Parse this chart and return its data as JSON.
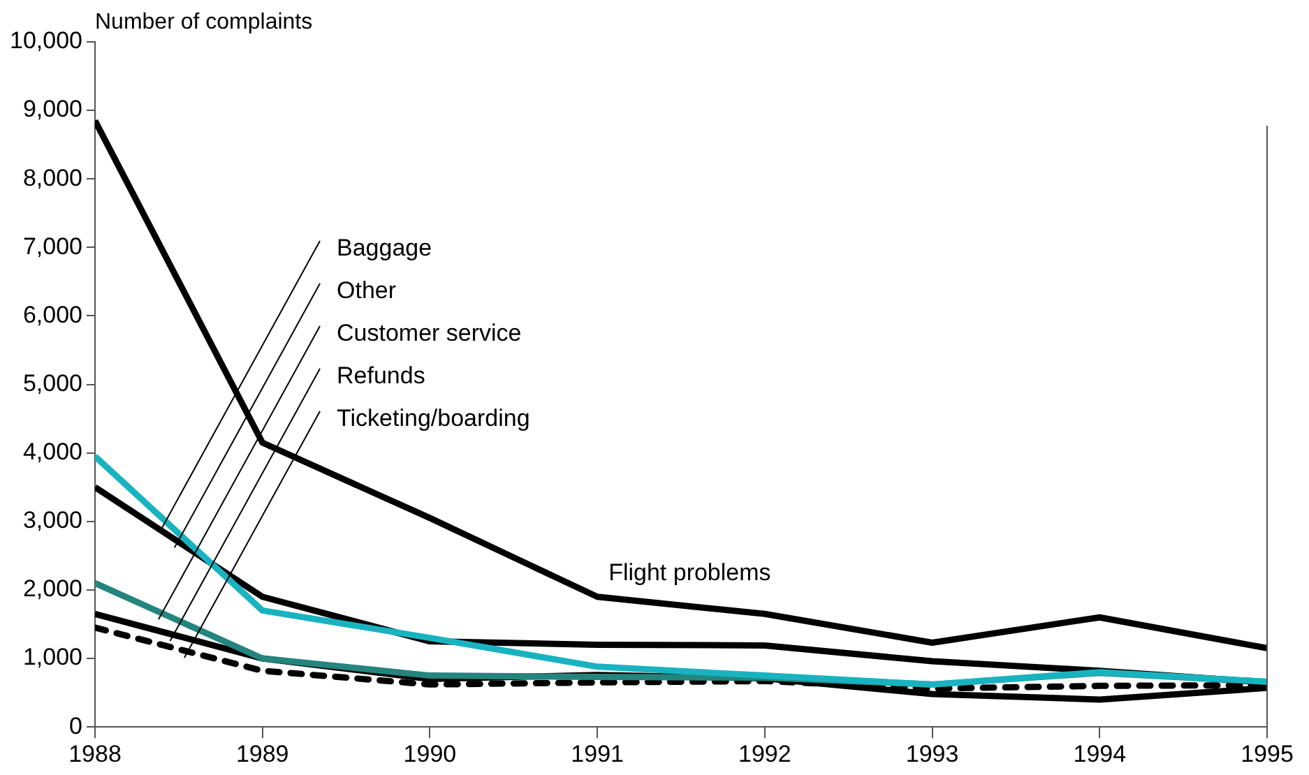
{
  "chart_data": {
    "type": "line",
    "ylabel": "Number of complaints",
    "x": [
      1988,
      1989,
      1990,
      1991,
      1992,
      1993,
      1994,
      1995
    ],
    "xlim": [
      1988,
      1995
    ],
    "xticks": [
      1988,
      1989,
      1990,
      1991,
      1992,
      1993,
      1994,
      1995
    ],
    "ylim": [
      0,
      10000
    ],
    "yticks": [
      0,
      {
        "value": 1000,
        "label": "1,000"
      },
      {
        "value": 2000,
        "label": "2,000"
      },
      {
        "value": 3000,
        "label": "3,000"
      },
      {
        "value": 4000,
        "label": "4,000"
      },
      {
        "value": 5000,
        "label": "5,000"
      },
      {
        "value": 6000,
        "label": "6,000"
      },
      {
        "value": 7000,
        "label": "7,000"
      },
      {
        "value": 8000,
        "label": "8,000"
      },
      {
        "value": 9000,
        "label": "9,000"
      },
      {
        "value": 10000,
        "label": "10,000"
      }
    ],
    "grid": false,
    "legend": false,
    "marker": "none",
    "line_style": "solid",
    "series": [
      {
        "name": "Flight problems",
        "color": "#000000",
        "values": [
          8850,
          4150,
          3050,
          1900,
          1650,
          1230,
          1600,
          1150
        ]
      },
      {
        "name": "Baggage",
        "color": "#19b3c0",
        "values": [
          3950,
          1700,
          1300,
          880,
          750,
          620,
          800,
          660
        ]
      },
      {
        "name": "Other",
        "color": "#000000",
        "values": [
          3500,
          1900,
          1250,
          1200,
          1190,
          960,
          820,
          650
        ]
      },
      {
        "name": "Customer service",
        "color": "#23857e",
        "values": [
          2100,
          1000,
          750,
          730,
          720,
          620,
          790,
          660
        ]
      },
      {
        "name": "Refunds",
        "color": "#000000",
        "values": [
          1650,
          1000,
          700,
          760,
          710,
          480,
          400,
          570
        ]
      },
      {
        "name": "Ticketing/boarding",
        "color": "#000000",
        "line_style": "dotted",
        "values": [
          1450,
          820,
          620,
          650,
          670,
          560,
          600,
          610
        ]
      }
    ]
  }
}
